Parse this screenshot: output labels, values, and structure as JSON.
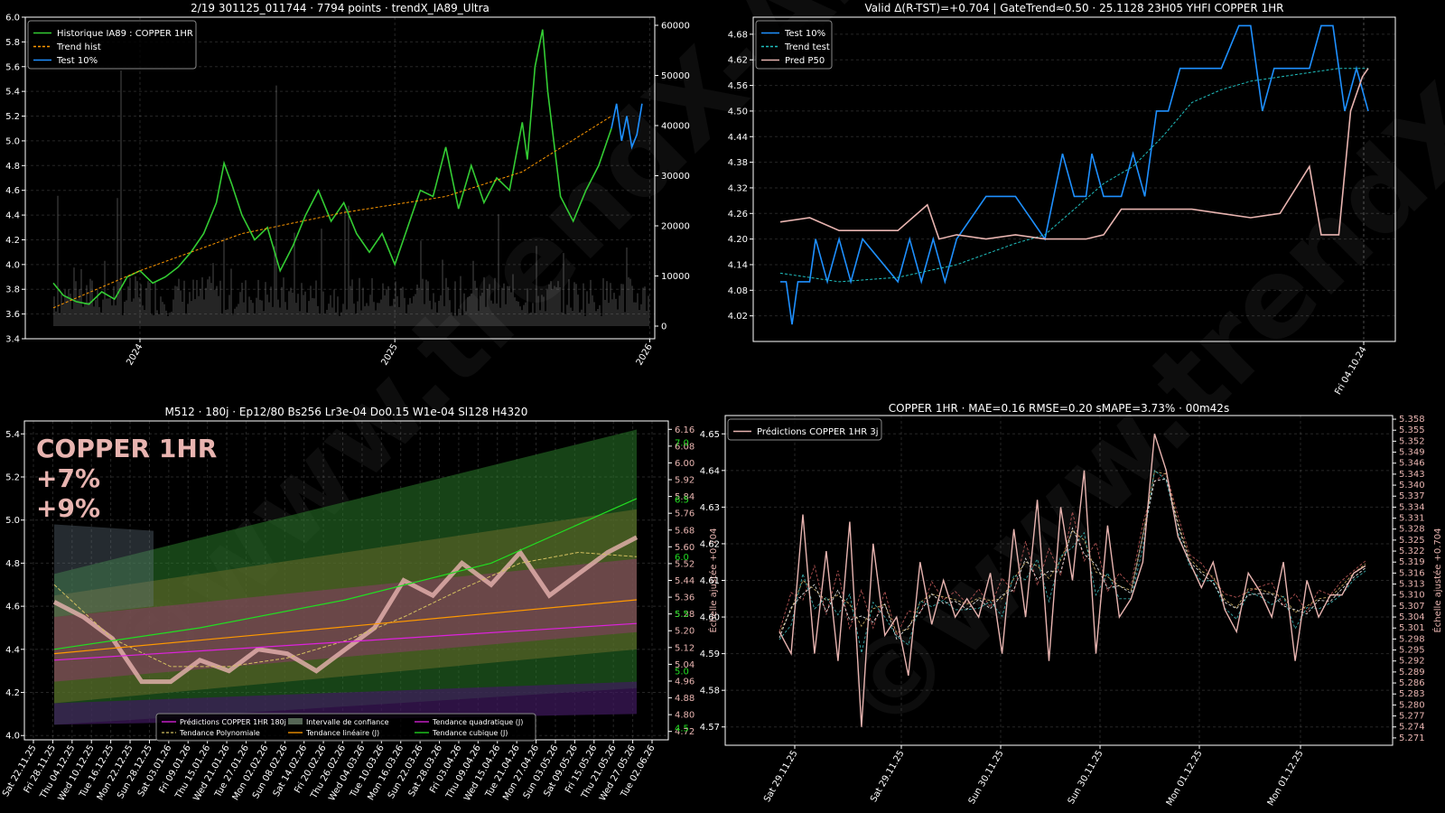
{
  "watermark": "©www.trendX-AI.fr",
  "chart_data": [
    {
      "type": "line",
      "title": "2/19 301125_011744 · 7794 points · trendX_IA89_Ultra",
      "ylim": [
        3.4,
        6.0
      ],
      "y2lim": [
        0,
        60000
      ],
      "xlim": [
        2023.55,
        2026.02
      ],
      "y_ticks": [
        "3.4",
        "3.6",
        "3.8",
        "4.0",
        "4.2",
        "4.4",
        "4.6",
        "4.8",
        "5.0",
        "5.2",
        "5.4",
        "5.6",
        "5.8",
        "6.0"
      ],
      "y2_ticks": [
        "0",
        "10000",
        "20000",
        "30000",
        "40000",
        "50000",
        "60000"
      ],
      "x_ticks": [
        "2024",
        "2025",
        "2026"
      ],
      "legend": [
        "Historique IA89 : COPPER 1HR",
        "Trend hist",
        "Test 10%"
      ],
      "grid": true,
      "series_colors": {
        "hist": "#33cc33",
        "trend": "#ff9900",
        "test": "#1e90ff",
        "volume": "#b0b0b0"
      },
      "series": [
        {
          "name": "Historique IA89 : COPPER 1HR",
          "x": [
            2023.66,
            2023.7,
            2023.75,
            2023.8,
            2023.85,
            2023.9,
            2023.95,
            2024.0,
            2024.05,
            2024.1,
            2024.15,
            2024.2,
            2024.25,
            2024.3,
            2024.33,
            2024.36,
            2024.4,
            2024.45,
            2024.5,
            2024.55,
            2024.6,
            2024.65,
            2024.7,
            2024.75,
            2024.8,
            2024.85,
            2024.9,
            2024.95,
            2025.0,
            2025.05,
            2025.1,
            2025.15,
            2025.2,
            2025.25,
            2025.3,
            2025.35,
            2025.4,
            2025.45,
            2025.5,
            2025.52,
            2025.55,
            2025.58,
            2025.6,
            2025.65,
            2025.7,
            2025.75,
            2025.8,
            2025.85
          ],
          "values": [
            3.85,
            3.75,
            3.7,
            3.68,
            3.78,
            3.72,
            3.9,
            3.95,
            3.85,
            3.9,
            3.98,
            4.1,
            4.25,
            4.5,
            4.82,
            4.65,
            4.4,
            4.2,
            4.3,
            3.95,
            4.15,
            4.4,
            4.6,
            4.35,
            4.5,
            4.25,
            4.1,
            4.25,
            4.0,
            4.3,
            4.6,
            4.55,
            4.95,
            4.45,
            4.8,
            4.5,
            4.7,
            4.6,
            5.15,
            4.85,
            5.6,
            5.9,
            5.4,
            4.55,
            4.35,
            4.6,
            4.8,
            5.1
          ]
        },
        {
          "name": "Trend hist",
          "x": [
            2023.66,
            2024.0,
            2024.4,
            2024.8,
            2025.2,
            2025.5,
            2025.85
          ],
          "values": [
            3.65,
            3.95,
            4.25,
            4.42,
            4.55,
            4.75,
            5.2
          ]
        },
        {
          "name": "Test 10%",
          "x": [
            2025.85,
            2025.87,
            2025.89,
            2025.91,
            2025.93,
            2025.95,
            2025.97
          ],
          "values": [
            5.1,
            5.3,
            5.0,
            5.2,
            4.95,
            5.05,
            5.3
          ]
        }
      ]
    },
    {
      "type": "line",
      "title": "Valid Δ(R-TST)=+0.704 | GateTrend≈0.50 · 25.1128 23H05 YHFI COPPER 1HR",
      "ylim": [
        3.96,
        4.72
      ],
      "y_ticks": [
        "4.02",
        "4.08",
        "4.14",
        "4.20",
        "4.26",
        "4.32",
        "4.38",
        "4.44",
        "4.50",
        "4.56",
        "4.62",
        "4.68"
      ],
      "x_ticks": [
        "Fri 04.10.24"
      ],
      "legend": [
        "Test 10%",
        "Trend test",
        "Pred P50"
      ],
      "grid": true,
      "series_colors": {
        "test": "#1e90ff",
        "trend": "#20c0c0",
        "pred": "#e8b4b0"
      },
      "series": [
        {
          "name": "Test 10%",
          "x": [
            0,
            0.01,
            0.02,
            0.03,
            0.04,
            0.05,
            0.06,
            0.08,
            0.1,
            0.12,
            0.14,
            0.2,
            0.22,
            0.24,
            0.26,
            0.28,
            0.3,
            0.35,
            0.4,
            0.45,
            0.48,
            0.5,
            0.52,
            0.53,
            0.55,
            0.56,
            0.58,
            0.6,
            0.62,
            0.64,
            0.66,
            0.68,
            0.7,
            0.72,
            0.75,
            0.78,
            0.8,
            0.82,
            0.84,
            0.86,
            0.88,
            0.9,
            0.92,
            0.94,
            0.96,
            0.98,
            1.0
          ],
          "values": [
            4.1,
            4.1,
            4.0,
            4.1,
            4.1,
            4.1,
            4.2,
            4.1,
            4.2,
            4.1,
            4.2,
            4.1,
            4.2,
            4.1,
            4.2,
            4.1,
            4.2,
            4.3,
            4.3,
            4.2,
            4.4,
            4.3,
            4.3,
            4.4,
            4.3,
            4.3,
            4.3,
            4.4,
            4.3,
            4.5,
            4.5,
            4.6,
            4.6,
            4.6,
            4.6,
            4.7,
            4.7,
            4.5,
            4.6,
            4.6,
            4.6,
            4.6,
            4.7,
            4.7,
            4.5,
            4.6,
            4.5
          ]
        },
        {
          "name": "Trend test",
          "x": [
            0,
            0.1,
            0.2,
            0.3,
            0.4,
            0.45,
            0.5,
            0.55,
            0.6,
            0.65,
            0.7,
            0.75,
            0.8,
            0.85,
            0.9,
            0.95,
            1.0
          ],
          "values": [
            4.12,
            4.1,
            4.11,
            4.14,
            4.19,
            4.21,
            4.27,
            4.33,
            4.37,
            4.44,
            4.52,
            4.55,
            4.57,
            4.58,
            4.59,
            4.6,
            4.6
          ]
        },
        {
          "name": "Pred P50",
          "x": [
            0,
            0.05,
            0.1,
            0.15,
            0.2,
            0.25,
            0.27,
            0.3,
            0.35,
            0.4,
            0.45,
            0.48,
            0.52,
            0.55,
            0.58,
            0.6,
            0.65,
            0.7,
            0.75,
            0.8,
            0.85,
            0.9,
            0.92,
            0.95,
            0.97,
            0.99,
            1.0
          ],
          "values": [
            4.24,
            4.25,
            4.22,
            4.22,
            4.22,
            4.28,
            4.2,
            4.21,
            4.2,
            4.21,
            4.2,
            4.2,
            4.2,
            4.21,
            4.27,
            4.27,
            4.27,
            4.27,
            4.26,
            4.25,
            4.26,
            4.37,
            4.21,
            4.21,
            4.5,
            4.58,
            4.6
          ]
        }
      ]
    },
    {
      "type": "line",
      "title": "M512 · 180j · Ep12/80 Bs256 Lr3e-04 Do0.15 W1e-04 Sl128 H4320",
      "big_label_lines": [
        "COPPER 1HR",
        "+7%",
        "+9%"
      ],
      "ylim": [
        3.98,
        5.46
      ],
      "y2lim": [
        4.68,
        6.2
      ],
      "y_ticks": [
        "4.0",
        "4.2",
        "4.4",
        "4.6",
        "4.8",
        "5.0",
        "5.2",
        "5.4"
      ],
      "y2_ticks": [
        "4.72",
        "4.80",
        "4.88",
        "4.96",
        "5.04",
        "5.12",
        "5.20",
        "5.28",
        "5.36",
        "5.44",
        "5.52",
        "5.60",
        "5.68",
        "5.76",
        "5.84",
        "5.92",
        "6.00",
        "6.08",
        "6.16"
      ],
      "y2_extra_ticks": [
        "4.5",
        "5.0",
        "5.5",
        "6.0",
        "6.5",
        "7.0"
      ],
      "y2_label": "Échelle ajustée +0.704",
      "x_ticks": [
        "Sat 22.11.25",
        "Fri 28.11.25",
        "Thu 04.12.25",
        "Wed 10.12.25",
        "Tue 16.12.25",
        "Mon 22.12.25",
        "Sun 28.12.25",
        "Sat 03.01.26",
        "Fri 09.01.26",
        "Thu 15.01.26",
        "Wed 21.01.26",
        "Tue 27.01.26",
        "Mon 02.02.26",
        "Sun 08.02.26",
        "Sat 14.02.26",
        "Fri 20.02.26",
        "Thu 26.02.26",
        "Wed 04.03.26",
        "Tue 10.03.26",
        "Mon 16.03.26",
        "Sun 22.03.26",
        "Sat 28.03.26",
        "Fri 03.04.26",
        "Thu 09.04.26",
        "Wed 15.04.26",
        "Tue 21.04.26",
        "Mon 27.04.26",
        "Sun 03.05.26",
        "Sat 09.05.26",
        "Fri 15.05.26",
        "Thu 21.05.26",
        "Wed 27.05.26",
        "Tue 02.06.26"
      ],
      "legend": [
        "Prédictions COPPER 1HR 180j",
        "Tendance Polynomiale",
        "Intervalle de confiance",
        "Tendance linéaire (J)",
        "Tendance quadratique (J)",
        "Tendance cubique (J)"
      ],
      "grid": true,
      "series_colors": {
        "pred": "#e8b4b0",
        "poly": "#d4c060",
        "ci": "#557755",
        "lin": "#ff9900",
        "quad": "#dd22dd",
        "cub": "#22dd22"
      },
      "series": [
        {
          "name": "Prédictions COPPER 1HR 180j",
          "x": [
            0,
            0.05,
            0.1,
            0.15,
            0.2,
            0.25,
            0.3,
            0.35,
            0.4,
            0.45,
            0.5,
            0.55,
            0.6,
            0.65,
            0.7,
            0.75,
            0.8,
            0.85,
            0.9,
            0.95,
            1.0
          ],
          "values": [
            4.62,
            4.55,
            4.45,
            4.25,
            4.25,
            4.35,
            4.3,
            4.4,
            4.38,
            4.3,
            4.4,
            4.5,
            4.72,
            4.65,
            4.8,
            4.7,
            4.85,
            4.65,
            4.75,
            4.85,
            4.92
          ]
        },
        {
          "name": "Tendance Polynomiale",
          "x": [
            0,
            0.1,
            0.2,
            0.3,
            0.4,
            0.5,
            0.6,
            0.7,
            0.8,
            0.9,
            1.0
          ],
          "values": [
            4.7,
            4.45,
            4.32,
            4.32,
            4.36,
            4.44,
            4.55,
            4.68,
            4.8,
            4.85,
            4.83
          ]
        },
        {
          "name": "Tendance linéaire (J)",
          "x": [
            0,
            1.0
          ],
          "values": [
            4.38,
            4.63
          ]
        },
        {
          "name": "Tendance quadratique (J)",
          "x": [
            0,
            1.0
          ],
          "values": [
            4.35,
            4.52
          ]
        },
        {
          "name": "Tendance cubique (J)",
          "x": [
            0,
            0.25,
            0.5,
            0.75,
            1.0
          ],
          "values": [
            4.4,
            4.5,
            4.63,
            4.8,
            5.1
          ]
        }
      ]
    },
    {
      "type": "line",
      "title": "COPPER 1HR · MAE=0.16 RMSE=0.20 sMAPE=3.73% · 00m42s",
      "ylim": [
        4.565,
        4.655
      ],
      "y2lim": [
        5.269,
        5.359
      ],
      "y_ticks": [
        "4.57",
        "4.58",
        "4.59",
        "4.60",
        "4.61",
        "4.62",
        "4.63",
        "4.64",
        "4.65"
      ],
      "y2_ticks": [
        "5.271",
        "5.274",
        "5.277",
        "5.280",
        "5.283",
        "5.286",
        "5.289",
        "5.292",
        "5.295",
        "5.298",
        "5.301",
        "5.304",
        "5.307",
        "5.310",
        "5.313",
        "5.316",
        "5.319",
        "5.322",
        "5.325",
        "5.328",
        "5.331",
        "5.334",
        "5.337",
        "5.340",
        "5.343",
        "5.346",
        "5.349",
        "5.352",
        "5.355",
        "5.358"
      ],
      "y2_label": "Échelle ajustée +0.704",
      "x_ticks": [
        "Sat 29.11.25",
        "Sat 29.11.25",
        "Sun 30.11.25",
        "Sun 30.11.25",
        "Mon 01.12.25",
        "Mon 01.12.25"
      ],
      "legend": [
        "Prédictions COPPER 1HR 3j"
      ],
      "grid": true,
      "series_colors": {
        "pred": "#e8b4b0"
      },
      "series": [
        {
          "name": "Prédictions COPPER 1HR 3j",
          "x": [
            0,
            0.02,
            0.04,
            0.06,
            0.08,
            0.1,
            0.12,
            0.14,
            0.16,
            0.18,
            0.2,
            0.22,
            0.24,
            0.26,
            0.28,
            0.3,
            0.32,
            0.34,
            0.36,
            0.38,
            0.4,
            0.42,
            0.44,
            0.46,
            0.48,
            0.5,
            0.52,
            0.54,
            0.56,
            0.58,
            0.6,
            0.62,
            0.64,
            0.66,
            0.68,
            0.7,
            0.72,
            0.74,
            0.76,
            0.78,
            0.8,
            0.82,
            0.84,
            0.86,
            0.88,
            0.9,
            0.92,
            0.94,
            0.96,
            0.98,
            1.0
          ],
          "values": [
            4.596,
            4.59,
            4.628,
            4.59,
            4.618,
            4.588,
            4.626,
            4.57,
            4.62,
            4.595,
            4.6,
            4.584,
            4.615,
            4.598,
            4.61,
            4.6,
            4.605,
            4.6,
            4.612,
            4.59,
            4.624,
            4.6,
            4.632,
            4.588,
            4.63,
            4.61,
            4.64,
            4.59,
            4.625,
            4.6,
            4.605,
            4.615,
            4.65,
            4.64,
            4.622,
            4.615,
            4.608,
            4.615,
            4.602,
            4.596,
            4.612,
            4.607,
            4.6,
            4.615,
            4.588,
            4.61,
            4.6,
            4.606,
            4.606,
            4.612,
            4.614
          ]
        }
      ]
    }
  ]
}
